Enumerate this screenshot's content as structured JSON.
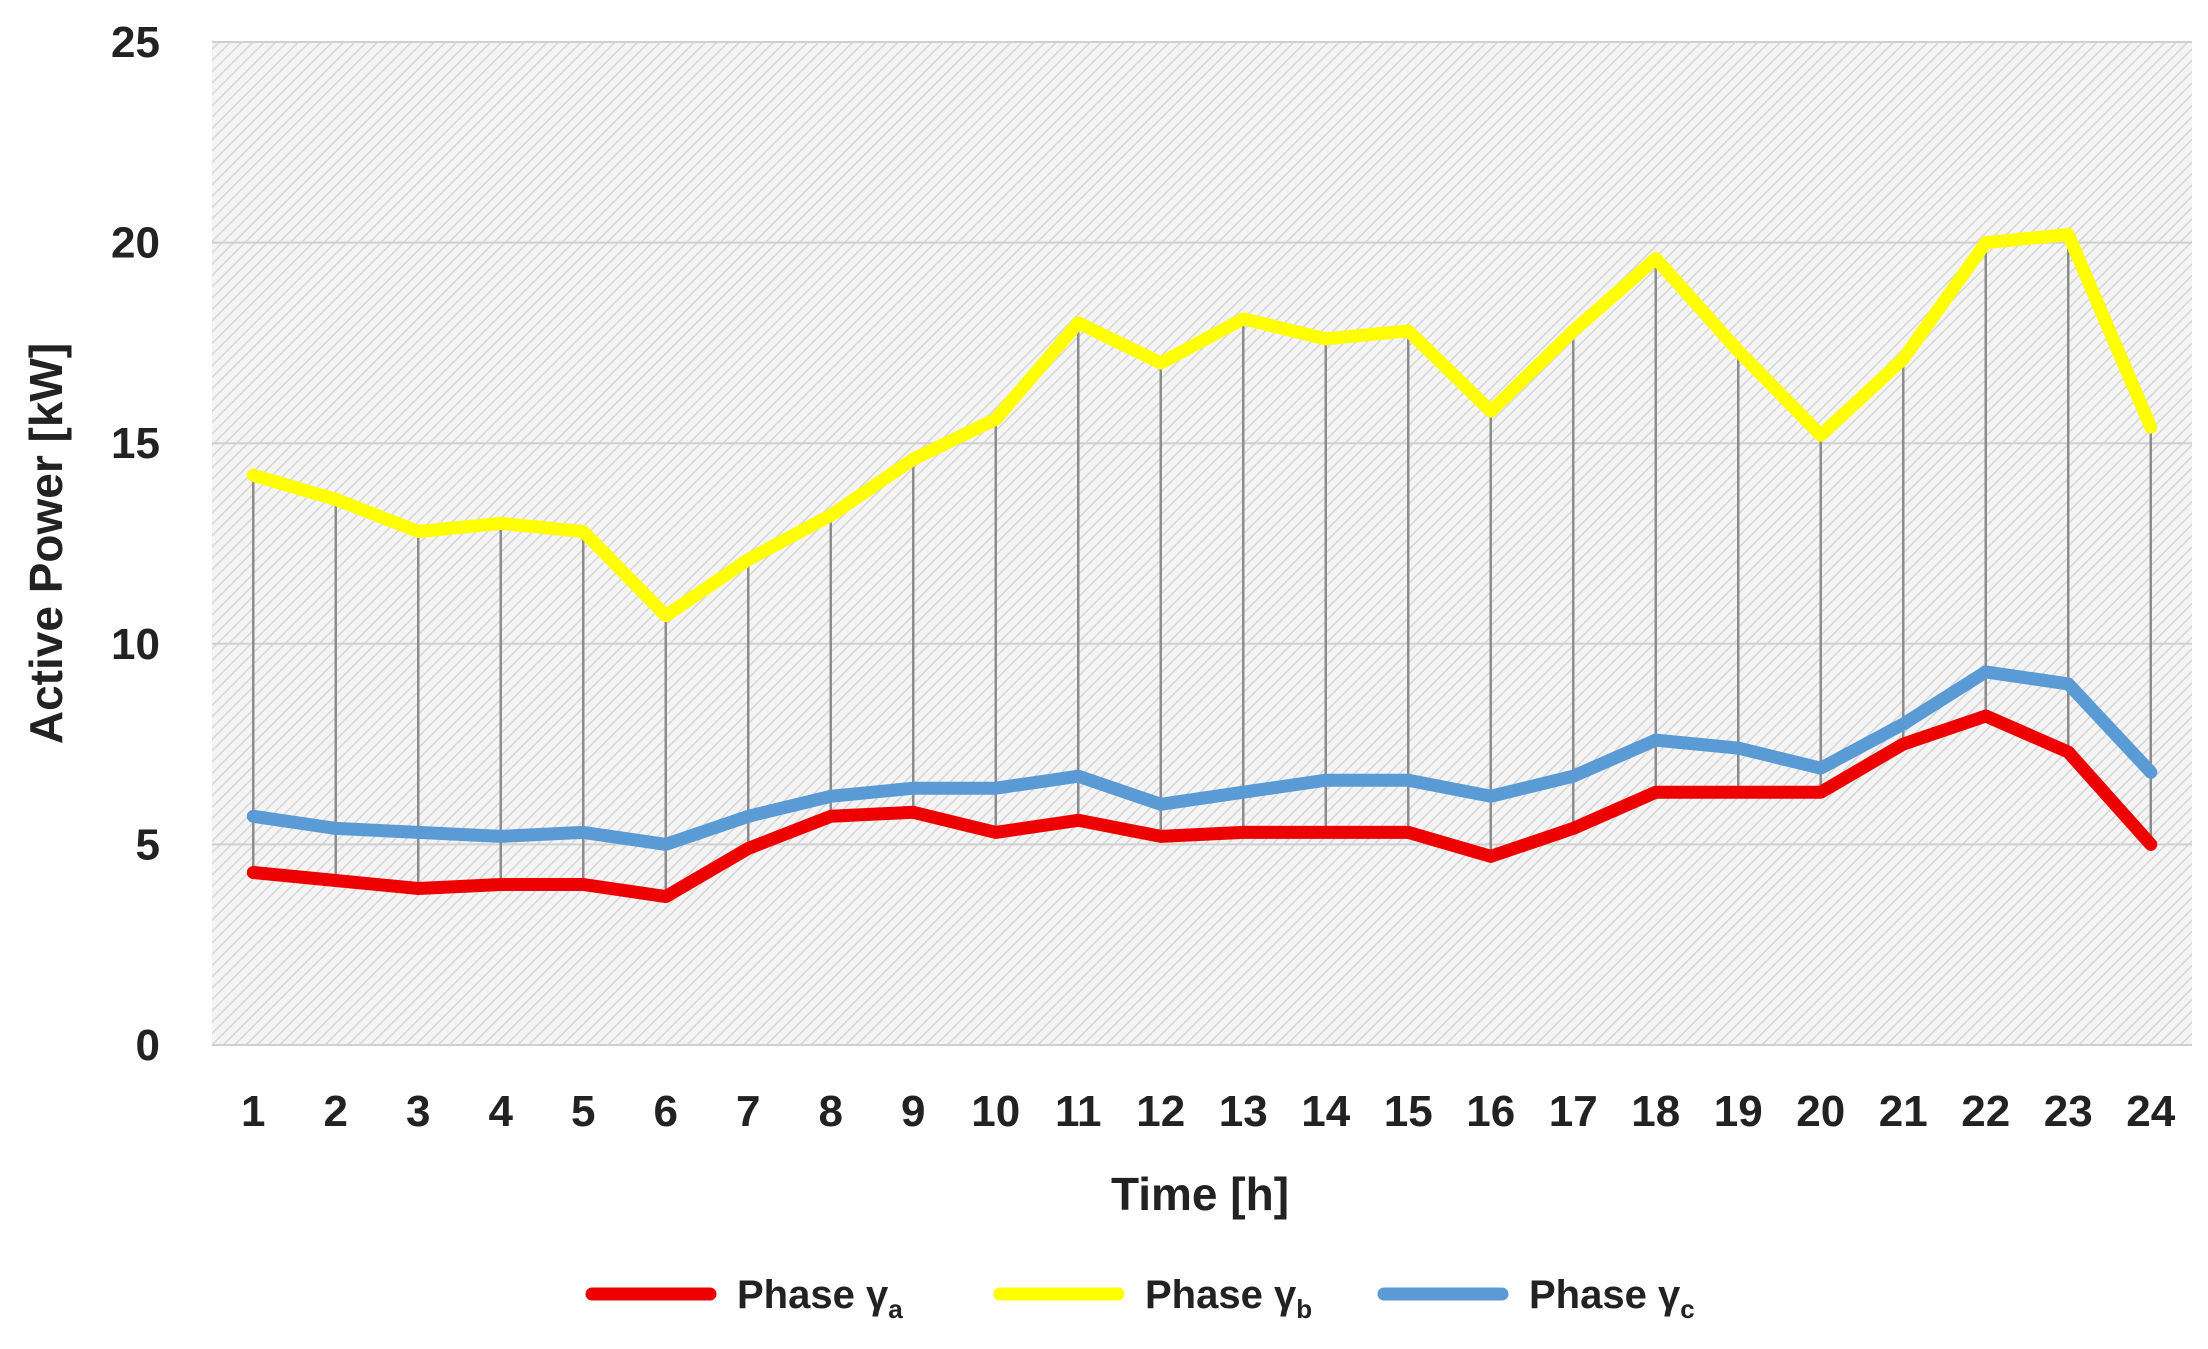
{
  "chart_data": {
    "type": "line",
    "title": "",
    "xlabel": "Time [h]",
    "ylabel": "Active Power [kW]",
    "ylim": [
      0,
      25
    ],
    "yticks": [
      0,
      5,
      10,
      15,
      20,
      25
    ],
    "x": [
      1,
      2,
      3,
      4,
      5,
      6,
      7,
      8,
      9,
      10,
      11,
      12,
      13,
      14,
      15,
      16,
      17,
      18,
      19,
      20,
      21,
      22,
      23,
      24
    ],
    "grid": "horizontal",
    "drop_lines": true,
    "plot_background": "hatched light gray",
    "legend_position": "bottom",
    "series": [
      {
        "name": "Phase γ",
        "subscript": "a",
        "color": "#ee0000",
        "values": [
          4.3,
          4.1,
          3.9,
          4.0,
          4.0,
          3.7,
          4.9,
          5.7,
          5.8,
          5.3,
          5.6,
          5.2,
          5.3,
          5.3,
          5.3,
          4.7,
          5.4,
          6.3,
          6.3,
          6.3,
          7.5,
          8.2,
          7.3,
          5.0
        ]
      },
      {
        "name": "Phase γ",
        "subscript": "b",
        "color": "#ffff00",
        "values": [
          14.2,
          13.6,
          12.8,
          13.0,
          12.8,
          10.7,
          12.1,
          13.2,
          14.6,
          15.6,
          18.0,
          17.0,
          18.1,
          17.6,
          17.8,
          15.8,
          17.8,
          19.6,
          17.3,
          15.2,
          17.1,
          20.0,
          20.2,
          15.4
        ]
      },
      {
        "name": "Phase γ",
        "subscript": "c",
        "color": "#5b9bd5",
        "values": [
          5.7,
          5.4,
          5.3,
          5.2,
          5.3,
          5.0,
          5.7,
          6.2,
          6.4,
          6.4,
          6.7,
          6.0,
          6.3,
          6.6,
          6.6,
          6.2,
          6.7,
          7.6,
          7.4,
          6.9,
          8.0,
          9.3,
          9.0,
          6.8
        ]
      }
    ]
  }
}
